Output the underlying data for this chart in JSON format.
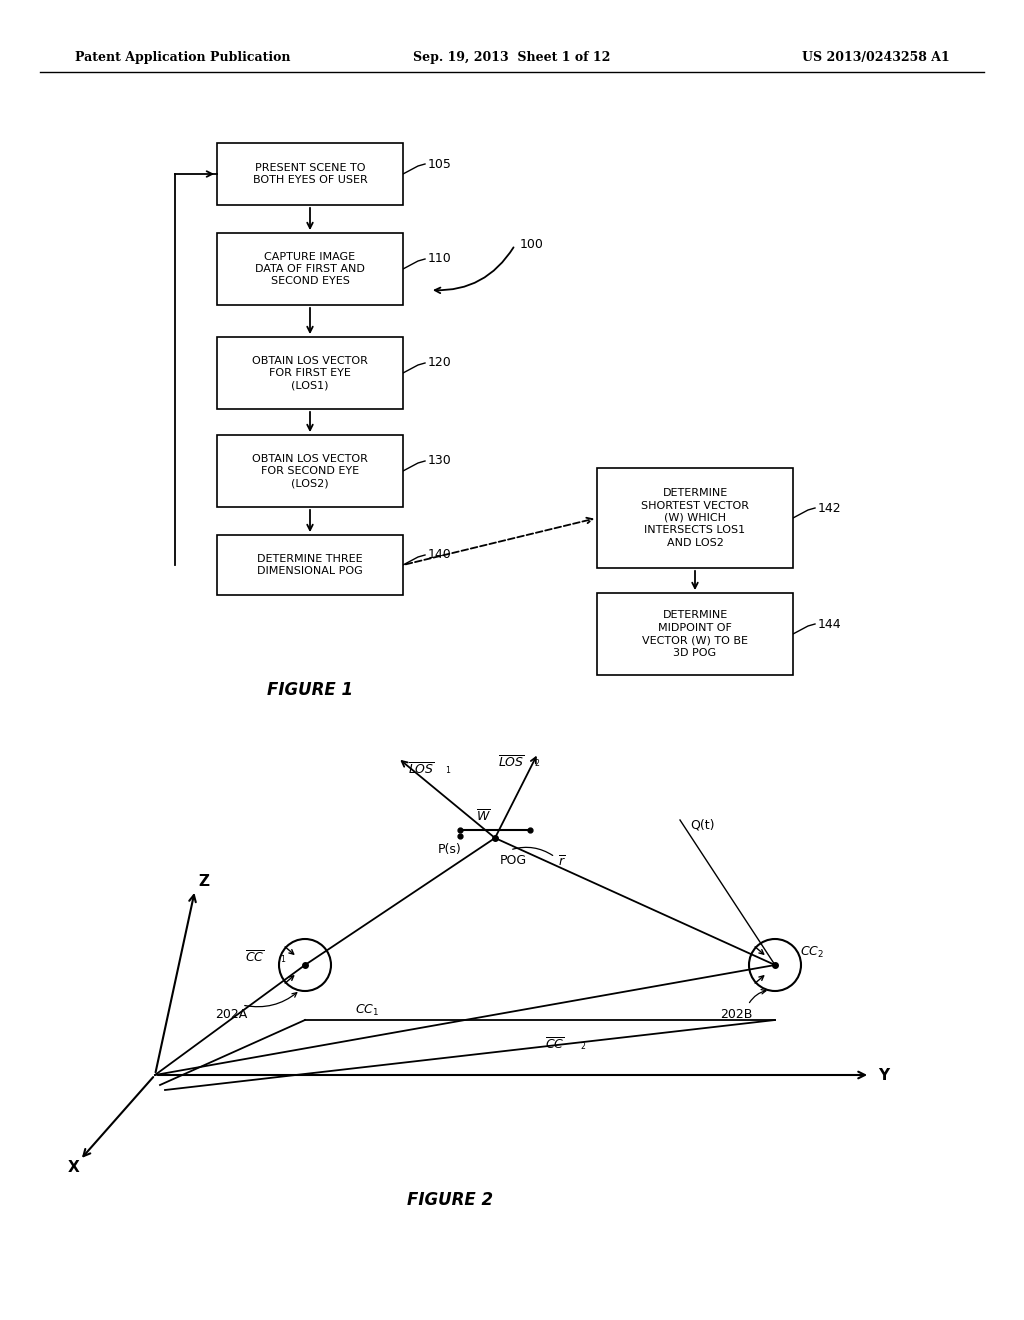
{
  "bg_color": "#ffffff",
  "header_left": "Patent Application Publication",
  "header_center": "Sep. 19, 2013  Sheet 1 of 12",
  "header_right": "US 2013/0243258 A1",
  "figure1_label": "FIGURE 1",
  "figure2_label": "FIGURE 2"
}
